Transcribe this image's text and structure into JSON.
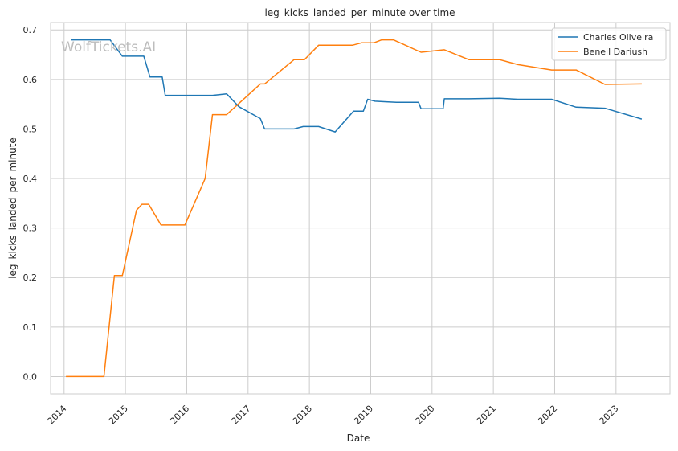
{
  "chart_data": {
    "type": "line",
    "title": "leg_kicks_landed_per_minute over time",
    "xlabel": "Date",
    "ylabel": "leg_kicks_landed_per_minute",
    "watermark": "WolfTickets.AI",
    "xlim": [
      2013.78,
      2023.88
    ],
    "ylim": [
      -0.035,
      0.715
    ],
    "x_ticks": [
      2014,
      2015,
      2016,
      2017,
      2018,
      2019,
      2020,
      2021,
      2022,
      2023
    ],
    "x_tick_labels": [
      "2014",
      "2015",
      "2016",
      "2017",
      "2018",
      "2019",
      "2020",
      "2021",
      "2022",
      "2023"
    ],
    "y_ticks": [
      0.0,
      0.1,
      0.2,
      0.3,
      0.4,
      0.5,
      0.6,
      0.7
    ],
    "y_tick_labels": [
      "0.0",
      "0.1",
      "0.2",
      "0.3",
      "0.4",
      "0.5",
      "0.6",
      "0.7"
    ],
    "grid": true,
    "legend_position": "top-right",
    "series": [
      {
        "name": "Charles Oliveira",
        "color": "#1f77b4",
        "x": [
          2014.12,
          2014.75,
          2014.95,
          2015.3,
          2015.4,
          2015.6,
          2015.65,
          2016.0,
          2016.42,
          2016.65,
          2016.85,
          2017.2,
          2017.27,
          2017.75,
          2017.9,
          2018.15,
          2018.42,
          2018.72,
          2018.88,
          2018.95,
          2019.07,
          2019.25,
          2019.42,
          2019.78,
          2019.82,
          2020.0,
          2020.18,
          2020.2,
          2020.6,
          2021.1,
          2021.4,
          2021.95,
          2022.35,
          2022.82,
          2023.42
        ],
        "y": [
          0.68,
          0.68,
          0.647,
          0.647,
          0.605,
          0.605,
          0.568,
          0.568,
          0.568,
          0.571,
          0.545,
          0.521,
          0.5,
          0.5,
          0.505,
          0.505,
          0.494,
          0.536,
          0.536,
          0.56,
          0.556,
          0.555,
          0.554,
          0.554,
          0.541,
          0.541,
          0.541,
          0.561,
          0.561,
          0.562,
          0.56,
          0.56,
          0.544,
          0.542,
          0.52
        ]
      },
      {
        "name": "Beneil Dariush",
        "color": "#ff7f0e",
        "x": [
          2014.03,
          2014.65,
          2014.82,
          2014.95,
          2015.18,
          2015.27,
          2015.38,
          2015.58,
          2015.97,
          2016.3,
          2016.42,
          2016.65,
          2017.2,
          2017.27,
          2017.75,
          2017.92,
          2018.15,
          2018.7,
          2018.85,
          2019.05,
          2019.18,
          2019.37,
          2019.82,
          2020.2,
          2020.6,
          2021.1,
          2021.4,
          2021.95,
          2022.35,
          2022.82,
          2023.42
        ],
        "y": [
          0.0,
          0.0,
          0.204,
          0.204,
          0.336,
          0.348,
          0.348,
          0.306,
          0.306,
          0.4,
          0.529,
          0.529,
          0.591,
          0.591,
          0.64,
          0.64,
          0.669,
          0.669,
          0.674,
          0.674,
          0.68,
          0.68,
          0.655,
          0.66,
          0.64,
          0.64,
          0.63,
          0.619,
          0.619,
          0.59,
          0.591
        ]
      }
    ]
  }
}
